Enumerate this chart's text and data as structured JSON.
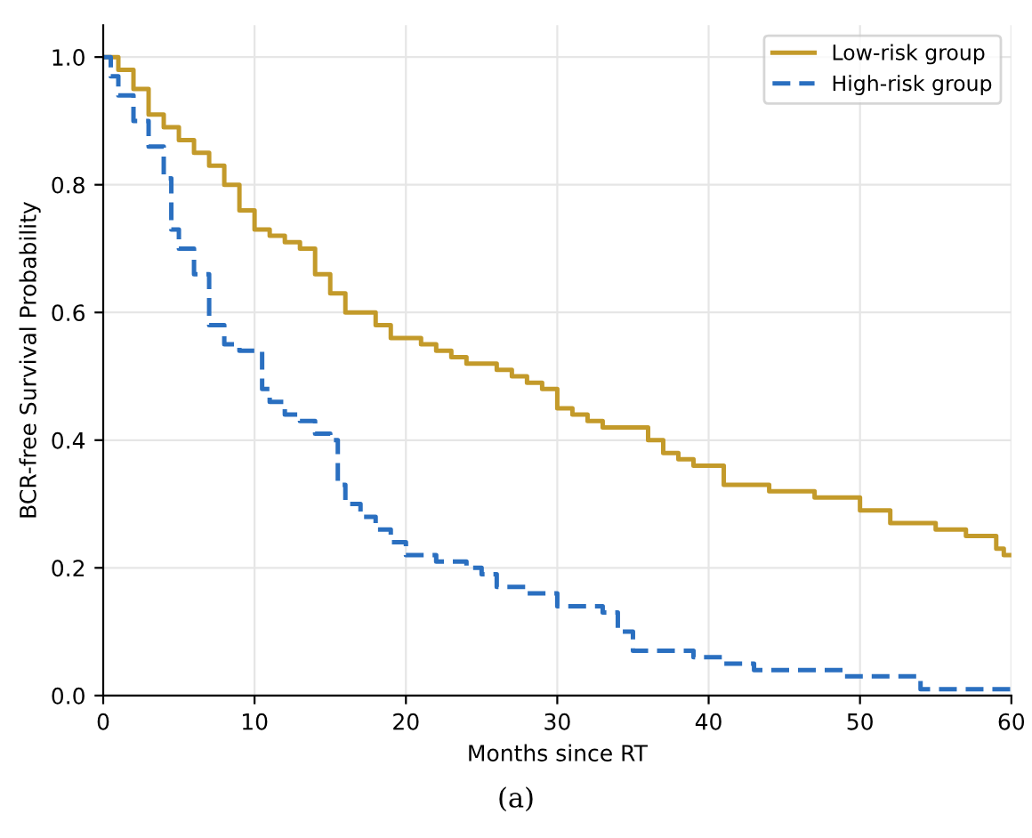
{
  "chart_data": {
    "type": "step",
    "xlabel": "Months since RT",
    "ylabel": "BCR-free Survival Probability",
    "annotations": [
      "(a)"
    ],
    "xlim": [
      0,
      60
    ],
    "ylim": [
      0,
      1.05
    ],
    "xticks": [
      0,
      10,
      20,
      30,
      40,
      50,
      60
    ],
    "yticks": [
      {
        "value": 0,
        "label": "0.0"
      },
      0.2,
      0.4,
      0.6,
      0.8,
      {
        "value": 1,
        "label": "1.0"
      }
    ],
    "grid": true,
    "legend": "top right",
    "marker": "none",
    "series": [
      {
        "name": "Low-risk group",
        "color": "#c39a2a",
        "line_style": "solid",
        "x": [
          0,
          1,
          2,
          3,
          4,
          5,
          6,
          7,
          8,
          9,
          10,
          11,
          12,
          13,
          14,
          15,
          16,
          18,
          19,
          21,
          22,
          23,
          24,
          26,
          27,
          28,
          29,
          30,
          31,
          32,
          33,
          36,
          37,
          38,
          39,
          41,
          44,
          47,
          50,
          52,
          55,
          57,
          59,
          59.5,
          60
        ],
        "values": [
          1.0,
          0.98,
          0.95,
          0.91,
          0.89,
          0.87,
          0.85,
          0.83,
          0.8,
          0.76,
          0.73,
          0.72,
          0.71,
          0.7,
          0.66,
          0.63,
          0.6,
          0.58,
          0.56,
          0.55,
          0.54,
          0.53,
          0.52,
          0.51,
          0.5,
          0.49,
          0.48,
          0.45,
          0.44,
          0.43,
          0.42,
          0.4,
          0.38,
          0.37,
          0.36,
          0.33,
          0.32,
          0.31,
          0.29,
          0.27,
          0.26,
          0.25,
          0.23,
          0.22,
          0.22
        ]
      },
      {
        "name": "High-risk group",
        "color": "#2a6fc0",
        "line_style": "dashed",
        "x": [
          0,
          0.5,
          1,
          2,
          3,
          4,
          4.5,
          5,
          6,
          7,
          8,
          9,
          10,
          10.5,
          11,
          12,
          13,
          14,
          15,
          15.5,
          16,
          17,
          18,
          19,
          20,
          22,
          24,
          25,
          26,
          28,
          30,
          33,
          34,
          35,
          39,
          41,
          43,
          49,
          54,
          60
        ],
        "values": [
          1.0,
          0.97,
          0.94,
          0.9,
          0.86,
          0.81,
          0.73,
          0.7,
          0.66,
          0.58,
          0.55,
          0.54,
          0.54,
          0.48,
          0.46,
          0.44,
          0.43,
          0.41,
          0.4,
          0.33,
          0.3,
          0.28,
          0.26,
          0.24,
          0.22,
          0.21,
          0.2,
          0.19,
          0.17,
          0.16,
          0.14,
          0.13,
          0.1,
          0.07,
          0.06,
          0.05,
          0.04,
          0.03,
          0.01,
          0.01
        ]
      }
    ]
  }
}
